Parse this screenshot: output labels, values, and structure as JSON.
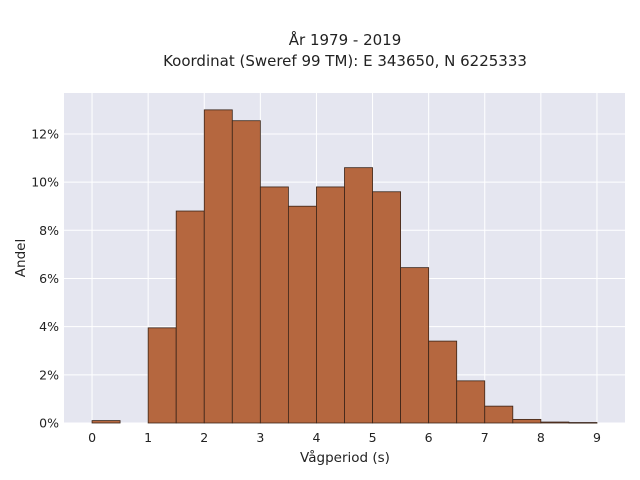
{
  "chart_data": {
    "type": "bar",
    "title_line1": "År 1979 - 2019",
    "title_line2": "Koordinat (Sweref 99 TM): E 343650, N 6225333",
    "xlabel": "Vågperiod (s)",
    "ylabel": "Andel",
    "xlim": [
      -0.5,
      9.5
    ],
    "ylim": [
      0,
      13.7
    ],
    "bin_width": 0.5,
    "bin_starts": [
      0,
      0.5,
      1,
      1.5,
      2,
      2.5,
      3,
      3.5,
      4,
      4.5,
      5,
      5.5,
      6,
      6.5,
      7,
      7.5,
      8,
      8.5
    ],
    "values": [
      0.1,
      0,
      3.95,
      8.8,
      13.0,
      12.55,
      9.8,
      9.0,
      9.8,
      10.6,
      9.6,
      6.45,
      3.4,
      1.75,
      0.7,
      0.15,
      0.04,
      0.02
    ],
    "x_ticks": [
      {
        "value": 0,
        "label": "0"
      },
      {
        "value": 1,
        "label": "1"
      },
      {
        "value": 2,
        "label": "2"
      },
      {
        "value": 3,
        "label": "3"
      },
      {
        "value": 4,
        "label": "4"
      },
      {
        "value": 5,
        "label": "5"
      },
      {
        "value": 6,
        "label": "6"
      },
      {
        "value": 7,
        "label": "7"
      },
      {
        "value": 8,
        "label": "8"
      },
      {
        "value": 9,
        "label": "9"
      }
    ],
    "y_ticks": [
      {
        "value": 0,
        "label": "0%"
      },
      {
        "value": 2,
        "label": "2%"
      },
      {
        "value": 4,
        "label": "4%"
      },
      {
        "value": 6,
        "label": "6%"
      },
      {
        "value": 8,
        "label": "8%"
      },
      {
        "value": 10,
        "label": "10%"
      },
      {
        "value": 12,
        "label": "12%"
      }
    ],
    "grid": true,
    "colors": {
      "bar_fill": "#b5673f",
      "bar_edge": "#3a2418",
      "plot_bg": "#e5e6f0",
      "grid": "#ffffff"
    }
  }
}
